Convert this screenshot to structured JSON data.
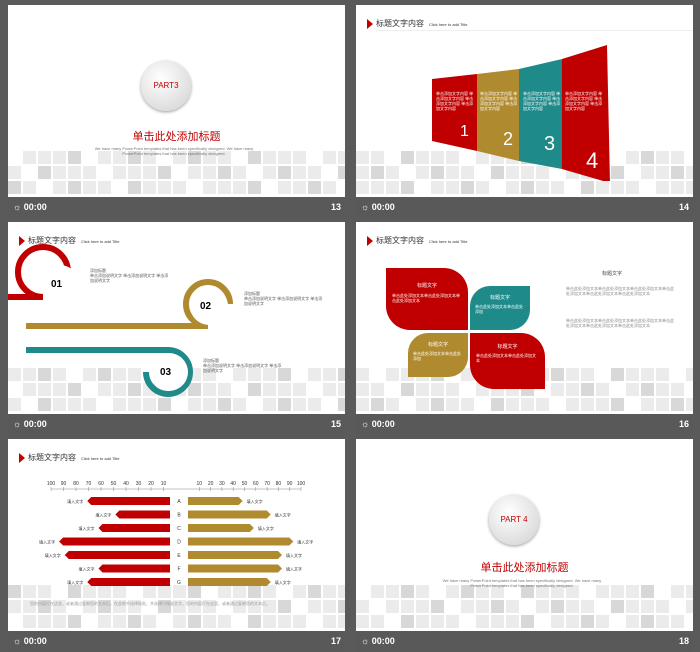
{
  "slides": [
    {
      "part": "PART3",
      "heading": "单击此处添加标题",
      "desc": "We have many PowerPoint templates that has been specifically designed. We have many PowerPoint templates that has been specifically designed.",
      "time": "00:00",
      "num": "13"
    },
    {
      "title": "标题文字内容",
      "subtitle": "Click here to add Title",
      "panels": [
        {
          "text": "单击添加文字内容 单击添加文字内容 单击添加文字内容 单击添加文字内容",
          "num": "1",
          "color": "#c00000"
        },
        {
          "text": "单击添加文字内容 单击添加文字内容 单击添加文字内容 单击添加文字内容",
          "num": "2",
          "color": "#b08a2e"
        },
        {
          "text": "单击添加文字内容 单击添加文字内容 单击添加文字内容 单击添加文字内容",
          "num": "3",
          "color": "#1f8a8a"
        },
        {
          "text": "单击添加文字内容 单击添加文字内容 单击添加文字内容 单击添加文字内容",
          "num": "4",
          "color": "#c00000"
        }
      ],
      "time": "00:00",
      "num": "14"
    },
    {
      "title": "标题文字内容",
      "subtitle": "Click here to add Title",
      "steps": [
        {
          "n": "01",
          "label": "添加标题",
          "text": "单击添加说明文字 单击添加说明文字 单击添加说明文字"
        },
        {
          "n": "02",
          "label": "添加标题",
          "text": "单击添加说明文字 单击添加说明文字 单击添加说明文字"
        },
        {
          "n": "03",
          "label": "添加标题",
          "text": "单击添加说明文字 单击添加说明文字 单击添加说明文字"
        }
      ],
      "time": "00:00",
      "num": "15"
    },
    {
      "title": "标题文字内容",
      "subtitle": "Click here to add Title",
      "petals": [
        {
          "label": "标题文字",
          "text": "单击此处添加文本单击此处添加文本单击此处添加文本"
        },
        {
          "label": "标题文字",
          "text": "单击此处添加文本单击此处添加"
        },
        {
          "label": "标题文字",
          "text": "单击此处添加文本单击此处添加"
        },
        {
          "label": "标题文字",
          "text": "单击此处添加文本单击此处添加文本"
        }
      ],
      "side_label": "标题文字",
      "side_text1": "单击此处添加文本单击此处添加文本单击此处添加文本单击此处添加文本单击此处添加文本单击此处添加文本",
      "side_text2": "单击此处添加文本单击此处添加文本单击此处添加文本单击此处添加文本单击此处添加文本单击此处添加文本",
      "time": "00:00",
      "num": "16"
    },
    {
      "title": "标题文字内容",
      "subtitle": "Click here to add Title",
      "footer": "您的内容打在这里，或者通过复制您的文本后，在此框中选择粘贴，并选择只保留文字。您的内容打在这里，或者通过复制您的文本后。",
      "time": "00:00",
      "num": "17"
    },
    {
      "part": "PART 4",
      "heading": "单击此处添加标题",
      "desc": "We have many PowerPoint templates that has been specifically designed. We have many PowerPoint templates that has been specifically designed.",
      "time": "00:00",
      "num": "18"
    }
  ],
  "chart_data": {
    "type": "bar",
    "title": "",
    "categories": [
      "A",
      "B",
      "C",
      "D",
      "E",
      "F",
      "G"
    ],
    "left_ticks": [
      "100",
      "90",
      "80",
      "70",
      "60",
      "50",
      "40",
      "30",
      "20",
      "10"
    ],
    "right_ticks": [
      "10",
      "20",
      "30",
      "40",
      "50",
      "60",
      "70",
      "80",
      "90",
      "100"
    ],
    "category_label": "填入文字",
    "series": [
      {
        "color": "#c00000",
        "values": [
          70,
          45,
          60,
          95,
          90,
          60,
          70
        ]
      },
      {
        "color": "#b08a2e",
        "values": [
          45,
          70,
          55,
          90,
          80,
          80,
          70
        ]
      }
    ],
    "xlim": [
      0,
      100
    ]
  }
}
